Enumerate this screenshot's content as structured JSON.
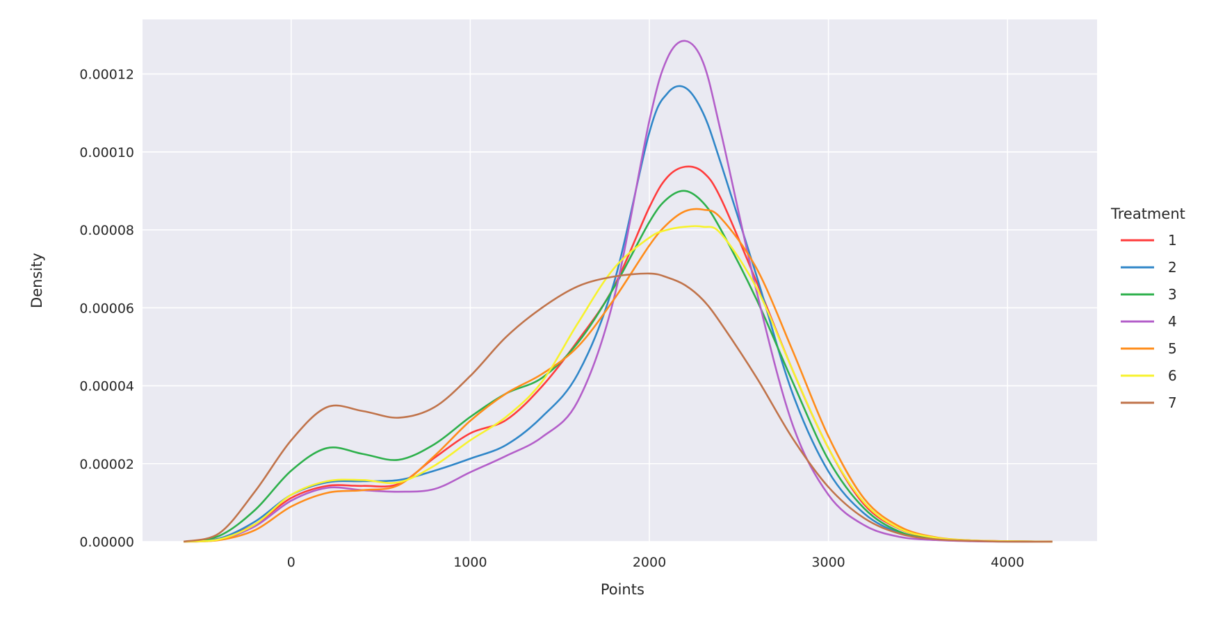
{
  "chart_data": {
    "type": "line",
    "xlabel": "Points",
    "ylabel": "Density",
    "xlim": [
      -830,
      4500
    ],
    "ylim": [
      0,
      0.000134
    ],
    "x_ticks": [
      0,
      1000,
      2000,
      3000,
      4000
    ],
    "x_tick_labels": [
      "0",
      "1000",
      "2000",
      "3000",
      "4000"
    ],
    "y_ticks": [
      0,
      2e-05,
      4e-05,
      6e-05,
      8e-05,
      0.0001,
      0.00012
    ],
    "y_tick_labels": [
      "0.00000",
      "0.00002",
      "0.00004",
      "0.00006",
      "0.00008",
      "0.00010",
      "0.00012"
    ],
    "grid": true,
    "background": "#eaeaf2",
    "legend": {
      "title": "Treatment",
      "placement": "outside-right"
    },
    "x": [
      -600,
      -400,
      -200,
      0,
      200,
      400,
      600,
      800,
      1000,
      1200,
      1400,
      1600,
      1800,
      2000,
      2100,
      2200,
      2300,
      2400,
      2600,
      2800,
      3000,
      3200,
      3400,
      3600,
      3800,
      4000,
      4250
    ],
    "series": [
      {
        "name": "1",
        "color": "#ff3b3b",
        "values": [
          0.0,
          8e-07,
          4.5e-06,
          1.12e-05,
          1.43e-05,
          1.43e-05,
          1.48e-05,
          2.15e-05,
          2.78e-05,
          3.12e-05,
          3.98e-05,
          5.15e-05,
          6.52e-05,
          8.58e-05,
          9.35e-05,
          9.62e-05,
          9.48e-05,
          8.8e-05,
          6.65e-05,
          4.4e-05,
          2.4e-05,
          9.5e-06,
          3.2e-06,
          9e-07,
          3e-07,
          1e-07,
          0.0
        ]
      },
      {
        "name": "2",
        "color": "#2f86c8",
        "values": [
          0.0,
          8e-07,
          5.2e-06,
          1.2e-05,
          1.52e-05,
          1.55e-05,
          1.58e-05,
          1.82e-05,
          2.13e-05,
          2.48e-05,
          3.2e-05,
          4.3e-05,
          6.6e-05,
          0.000105,
          0.000115,
          0.0001165,
          0.00011,
          9.7e-05,
          6.8e-05,
          3.8e-05,
          1.8e-05,
          7.2e-06,
          2.2e-06,
          7e-07,
          2e-07,
          1e-07,
          0.0
        ]
      },
      {
        "name": "3",
        "color": "#2db04b",
        "values": [
          0.0,
          1.5e-06,
          8.2e-06,
          1.82e-05,
          2.4e-05,
          2.25e-05,
          2.1e-05,
          2.5e-05,
          3.2e-05,
          3.8e-05,
          4.2e-05,
          5.1e-05,
          6.5e-05,
          8.2e-05,
          8.8e-05,
          9e-05,
          8.7e-05,
          8e-05,
          6.2e-05,
          4.1e-05,
          2.1e-05,
          8.5e-06,
          2.5e-06,
          7e-07,
          2e-07,
          0.0,
          0.0
        ]
      },
      {
        "name": "4",
        "color": "#b35ec9",
        "values": [
          0.0,
          5e-07,
          4e-06,
          1.05e-05,
          1.38e-05,
          1.32e-05,
          1.28e-05,
          1.35e-05,
          1.78e-05,
          2.2e-05,
          2.68e-05,
          3.6e-05,
          6.2e-05,
          0.000108,
          0.000124,
          0.0001285,
          0.000123,
          0.000105,
          6.4e-05,
          3e-05,
          1.2e-05,
          4.2e-06,
          1.2e-06,
          4e-07,
          1e-07,
          0.0,
          0.0
        ]
      },
      {
        "name": "5",
        "color": "#ff8c1a",
        "values": [
          0.0,
          4e-07,
          3e-06,
          9e-06,
          1.25e-05,
          1.32e-05,
          1.45e-05,
          2.2e-05,
          3.1e-05,
          3.8e-05,
          4.3e-05,
          5e-05,
          6.2e-05,
          7.6e-05,
          8.15e-05,
          8.48e-05,
          8.52e-05,
          8.3e-05,
          7e-05,
          4.9e-05,
          2.7e-05,
          1.1e-05,
          3.8e-06,
          1.1e-06,
          3e-07,
          1e-07,
          0.0
        ]
      },
      {
        "name": "6",
        "color": "#f7f22c",
        "values": [
          0.0,
          6e-07,
          4.5e-06,
          1.2e-05,
          1.55e-05,
          1.58e-05,
          1.52e-05,
          1.95e-05,
          2.6e-05,
          3.2e-05,
          4.1e-05,
          5.6e-05,
          7e-05,
          7.8e-05,
          8e-05,
          8.08e-05,
          8.08e-05,
          7.9e-05,
          6.5e-05,
          4.4e-05,
          2.4e-05,
          1e-05,
          3.3e-06,
          1e-06,
          3e-07,
          1e-07,
          0.0
        ]
      },
      {
        "name": "7",
        "color": "#c0734a",
        "values": [
          0.0,
          2.2e-06,
          1.3e-05,
          2.6e-05,
          3.45e-05,
          3.35e-05,
          3.18e-05,
          3.45e-05,
          4.25e-05,
          5.25e-05,
          6e-05,
          6.55e-05,
          6.8e-05,
          6.88e-05,
          6.78e-05,
          6.58e-05,
          6.2e-05,
          5.6e-05,
          4.2e-05,
          2.65e-05,
          1.4e-05,
          6e-06,
          2e-06,
          6e-07,
          2e-07,
          0.0,
          0.0
        ]
      }
    ]
  }
}
